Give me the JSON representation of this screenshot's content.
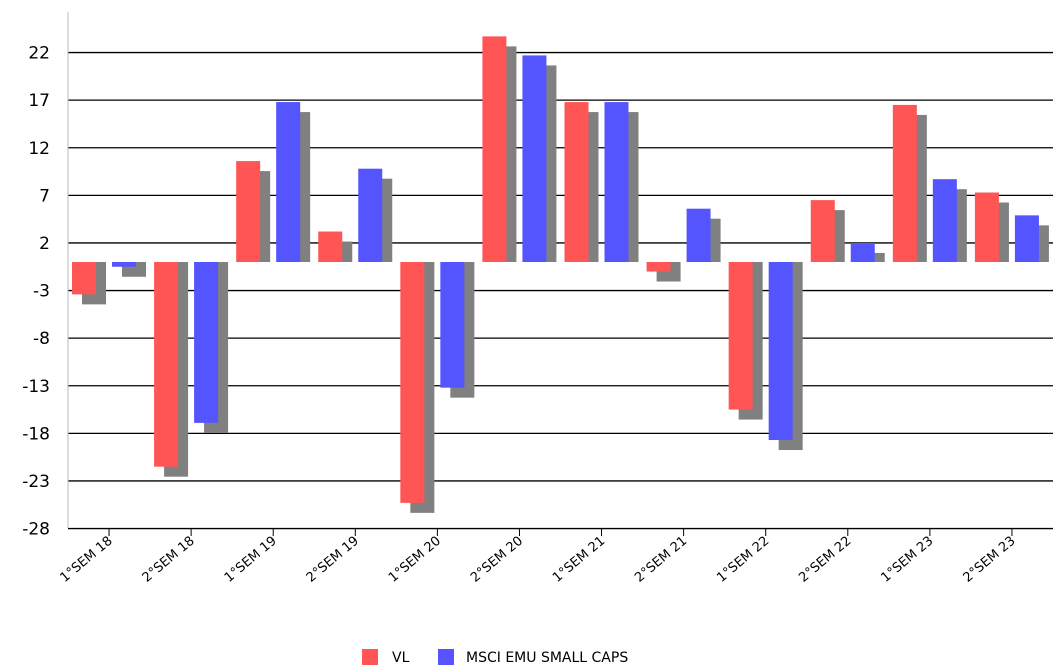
{
  "chart_data": {
    "type": "bar",
    "title": "",
    "xlabel": "",
    "ylabel": "",
    "categories": [
      "1°SEM 18",
      "2°SEM 18",
      "1°SEM 19",
      "2°SEM 19",
      "1°SEM 20",
      "2°SEM 20",
      "1°SEM 21",
      "2°SEM 21",
      "1°SEM 22",
      "2°SEM 22",
      "1°SEM 23",
      "2°SEM 23"
    ],
    "series": [
      {
        "name": "VL",
        "color": "#ff5555",
        "values": [
          -3.4,
          -21.5,
          10.6,
          3.2,
          -25.3,
          23.7,
          16.8,
          -1.0,
          -15.5,
          6.5,
          16.5,
          7.3
        ]
      },
      {
        "name": "MSCI EMU SMALL CAPS",
        "color": "#5555ff",
        "values": [
          -0.5,
          -16.9,
          16.8,
          9.8,
          -13.2,
          21.7,
          16.8,
          5.6,
          -18.7,
          2.0,
          8.7,
          4.9
        ]
      }
    ],
    "shadow_color": "#808080",
    "yticks": [
      22,
      17,
      12,
      7,
      2,
      -3,
      -8,
      -13,
      -18,
      -23,
      -28
    ],
    "ylim": [
      -28,
      25
    ],
    "grid": true,
    "legend_position": "bottom-center"
  }
}
